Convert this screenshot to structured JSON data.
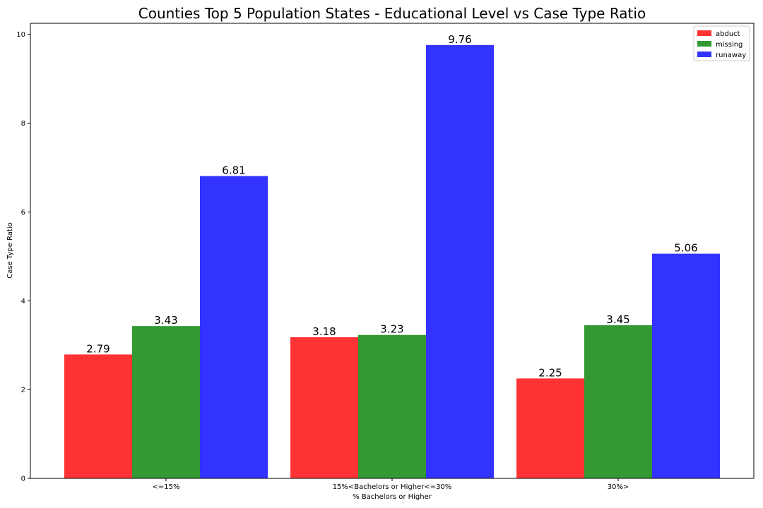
{
  "chart_data": {
    "type": "bar",
    "title": "Counties Top 5 Population States - Educational Level vs Case Type Ratio",
    "xlabel": "% Bachelors or Higher",
    "ylabel": "Case Type Ratio",
    "categories": [
      "<=15%",
      "15%<Bachelors or Higher<=30%",
      "30%>"
    ],
    "series": [
      {
        "name": "abduct",
        "color": "#ff3333",
        "values": [
          2.79,
          3.18,
          2.25
        ],
        "labels": [
          "2.79",
          "3.18",
          "2.25"
        ]
      },
      {
        "name": "missing",
        "color": "#339933",
        "values": [
          3.43,
          3.23,
          3.45
        ],
        "labels": [
          "3.43",
          "3.23",
          "3.45"
        ]
      },
      {
        "name": "runaway",
        "color": "#3333ff",
        "values": [
          6.81,
          9.76,
          5.06
        ],
        "labels": [
          "6.81",
          "9.76",
          "5.06"
        ]
      }
    ],
    "ylim": [
      0,
      10.25
    ],
    "yticks": [
      0,
      2,
      4,
      6,
      8,
      10
    ],
    "ytick_labels": [
      "0",
      "2",
      "4",
      "6",
      "8",
      "10"
    ],
    "legend_loc": "top-right",
    "grid": false
  }
}
